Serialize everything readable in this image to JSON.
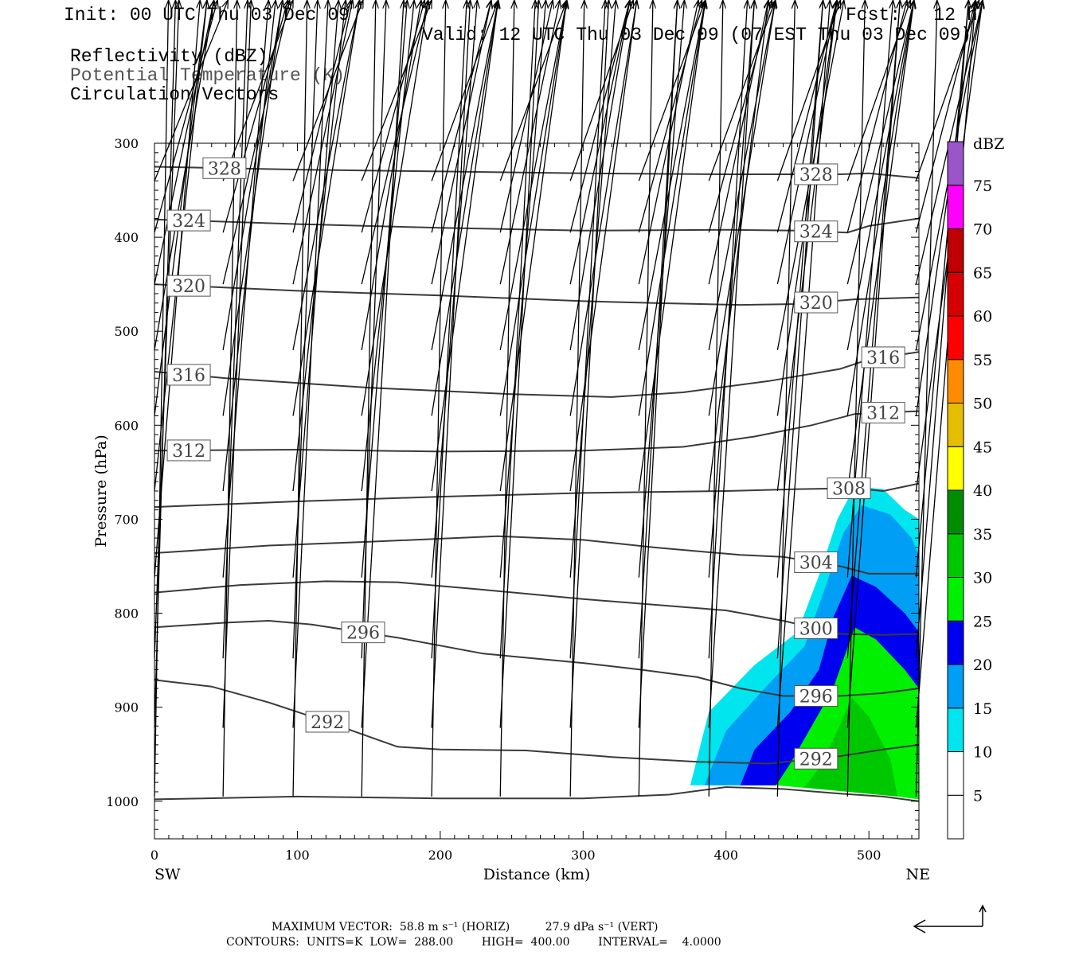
{
  "header": {
    "init": "Init: 00 UTC Thu 03 Dec 09",
    "fcst": "Fcst:   12 h",
    "valid": "Valid: 12 UTC Thu 03 Dec 09 (07 EST Thu 03 Dec 09)",
    "field1": "Reflectivity (dBZ)",
    "field2": "Potential Temperature (K)",
    "field3": "Circulation Vectors"
  },
  "footer": {
    "max_vector": "MAXIMUM VECTOR:  58.8 m s⁻¹ (HORIZ)          27.9 dPa s⁻¹ (VERT)",
    "contours": "CONTOURS:  UNITS=K  LOW=  288.00        HIGH=  400.00        INTERVAL=    4.0000"
  },
  "chart_data": {
    "type": "cross-section",
    "xlabel": "Distance (km)",
    "ylabel": "Pressure (hPa)",
    "x_ends": [
      "SW",
      "NE"
    ],
    "xlim": [
      0,
      535
    ],
    "ylim": [
      1040,
      300
    ],
    "x_ticks": [
      0,
      100,
      200,
      300,
      400,
      500
    ],
    "y_ticks": [
      300,
      400,
      500,
      600,
      700,
      800,
      900,
      1000
    ],
    "colorbar": {
      "unit": "dBZ",
      "levels": [
        5,
        10,
        15,
        20,
        25,
        30,
        35,
        40,
        45,
        50,
        55,
        60,
        65,
        70,
        75
      ],
      "colors": [
        "#ffffff",
        "#00e5ee",
        "#009ff5",
        "#0000f0",
        "#00f000",
        "#00c800",
        "#008c00",
        "#ffff00",
        "#e6be00",
        "#ff8c00",
        "#ff0000",
        "#d70000",
        "#c00000",
        "#ff00ff",
        "#9a55c8"
      ]
    },
    "reflectivity_regions": [
      {
        "min_dbz": 5,
        "points": [
          [
            375,
            983
          ],
          [
            388,
            905
          ],
          [
            420,
            855
          ],
          [
            450,
            820
          ],
          [
            465,
            760
          ],
          [
            478,
            700
          ],
          [
            490,
            665
          ],
          [
            510,
            668
          ],
          [
            525,
            690
          ],
          [
            535,
            700
          ],
          [
            535,
            983
          ]
        ]
      },
      {
        "min_dbz": 10,
        "points": [
          [
            385,
            983
          ],
          [
            400,
            925
          ],
          [
            430,
            875
          ],
          [
            455,
            835
          ],
          [
            470,
            770
          ],
          [
            482,
            715
          ],
          [
            495,
            685
          ],
          [
            515,
            695
          ],
          [
            530,
            720
          ],
          [
            535,
            740
          ],
          [
            535,
            983
          ]
        ]
      },
      {
        "min_dbz": 15,
        "points": [
          [
            410,
            983
          ],
          [
            420,
            945
          ],
          [
            445,
            905
          ],
          [
            465,
            860
          ],
          [
            475,
            805
          ],
          [
            488,
            760
          ],
          [
            505,
            772
          ],
          [
            525,
            800
          ],
          [
            535,
            820
          ],
          [
            535,
            983
          ]
        ]
      },
      {
        "min_dbz": 20,
        "points": [
          [
            435,
            983
          ],
          [
            445,
            960
          ],
          [
            460,
            920
          ],
          [
            475,
            880
          ],
          [
            490,
            815
          ],
          [
            505,
            828
          ],
          [
            525,
            860
          ],
          [
            535,
            880
          ],
          [
            535,
            998
          ],
          [
            520,
            995
          ],
          [
            485,
            990
          ]
        ]
      },
      {
        "min_dbz": 25,
        "points": [
          [
            455,
            985
          ],
          [
            465,
            965
          ],
          [
            478,
            925
          ],
          [
            488,
            890
          ],
          [
            500,
            910
          ],
          [
            515,
            955
          ],
          [
            520,
            995
          ],
          [
            485,
            990
          ]
        ]
      }
    ],
    "theta_contours": [
      {
        "value": 328,
        "points": [
          [
            0,
            325
          ],
          [
            100,
            328
          ],
          [
            200,
            330
          ],
          [
            300,
            332
          ],
          [
            400,
            333
          ],
          [
            480,
            333
          ],
          [
            500,
            332
          ],
          [
            535,
            337
          ]
        ],
        "label_x": [
          49,
          463
        ]
      },
      {
        "value": 324,
        "points": [
          [
            0,
            381
          ],
          [
            100,
            386
          ],
          [
            200,
            390
          ],
          [
            300,
            393
          ],
          [
            400,
            392
          ],
          [
            450,
            393
          ],
          [
            485,
            395
          ],
          [
            500,
            388
          ],
          [
            535,
            380
          ]
        ],
        "label_x": [
          24,
          463
        ]
      },
      {
        "value": 320,
        "points": [
          [
            0,
            450
          ],
          [
            100,
            457
          ],
          [
            200,
            462
          ],
          [
            300,
            468
          ],
          [
            350,
            470
          ],
          [
            410,
            472
          ],
          [
            450,
            471
          ],
          [
            490,
            466
          ],
          [
            535,
            464
          ]
        ],
        "label_x": [
          24,
          463
        ]
      },
      {
        "value": 316,
        "points": [
          [
            0,
            543
          ],
          [
            50,
            550
          ],
          [
            150,
            560
          ],
          [
            250,
            567
          ],
          [
            320,
            570
          ],
          [
            370,
            565
          ],
          [
            430,
            553
          ],
          [
            480,
            540
          ],
          [
            500,
            530
          ],
          [
            535,
            522
          ]
        ],
        "label_x": [
          24,
          510
        ]
      },
      {
        "value": 312,
        "points": [
          [
            0,
            627
          ],
          [
            100,
            626
          ],
          [
            200,
            628
          ],
          [
            300,
            627
          ],
          [
            370,
            623
          ],
          [
            420,
            612
          ],
          [
            460,
            600
          ],
          [
            490,
            588
          ],
          [
            535,
            585
          ]
        ],
        "label_x": [
          24,
          510
        ]
      },
      {
        "value": 308,
        "points": [
          [
            0,
            687
          ],
          [
            100,
            681
          ],
          [
            200,
            676
          ],
          [
            300,
            672
          ],
          [
            400,
            670
          ],
          [
            450,
            668
          ],
          [
            490,
            667
          ],
          [
            510,
            670
          ],
          [
            535,
            662
          ]
        ],
        "label_x": [
          486
        ]
      },
      {
        "value": 304,
        "points": [
          [
            0,
            736
          ],
          [
            80,
            728
          ],
          [
            150,
            724
          ],
          [
            240,
            718
          ],
          [
            300,
            722
          ],
          [
            350,
            730
          ],
          [
            410,
            738
          ],
          [
            440,
            740
          ],
          [
            480,
            750
          ],
          [
            500,
            758
          ],
          [
            535,
            758
          ]
        ],
        "label_x": [
          463
        ]
      },
      {
        "value": 300,
        "points": [
          [
            0,
            778
          ],
          [
            60,
            770
          ],
          [
            120,
            766
          ],
          [
            170,
            767
          ],
          [
            230,
            775
          ],
          [
            300,
            785
          ],
          [
            400,
            797
          ],
          [
            440,
            808
          ],
          [
            480,
            822
          ],
          [
            510,
            823
          ],
          [
            535,
            822
          ]
        ],
        "label_x": [
          463
        ]
      },
      {
        "value": 296,
        "points": [
          [
            0,
            815
          ],
          [
            50,
            810
          ],
          [
            80,
            808
          ],
          [
            110,
            812
          ],
          [
            170,
            826
          ],
          [
            230,
            843
          ],
          [
            300,
            853
          ],
          [
            340,
            860
          ],
          [
            380,
            868
          ],
          [
            410,
            880
          ],
          [
            440,
            888
          ],
          [
            480,
            888
          ],
          [
            510,
            885
          ],
          [
            535,
            880
          ]
        ],
        "label_x": [
          146,
          463
        ]
      },
      {
        "value": 292,
        "points": [
          [
            0,
            871
          ],
          [
            40,
            878
          ],
          [
            80,
            895
          ],
          [
            120,
            915
          ],
          [
            170,
            942
          ],
          [
            200,
            945
          ],
          [
            260,
            946
          ],
          [
            320,
            953
          ],
          [
            380,
            958
          ],
          [
            430,
            960
          ],
          [
            480,
            952
          ],
          [
            510,
            945
          ],
          [
            535,
            940
          ]
        ],
        "label_x": [
          121,
          463
        ]
      },
      {
        "value": 288,
        "points": [
          [
            0,
            998
          ],
          [
            100,
            995
          ],
          [
            200,
            997
          ],
          [
            300,
            997
          ],
          [
            360,
            993
          ],
          [
            400,
            985
          ],
          [
            440,
            987
          ],
          [
            480,
            992
          ],
          [
            510,
            995
          ],
          [
            535,
            1000
          ]
        ],
        "label_x": []
      }
    ],
    "vector_rows": [
      {
        "p": 340,
        "u": [
          42,
          40,
          40,
          40,
          38,
          38,
          36,
          38,
          38,
          36,
          36,
          36,
          36
        ],
        "w": [
          0,
          -3,
          -2,
          -1,
          -2,
          -3,
          -2,
          -1,
          -2,
          0,
          2,
          2,
          6
        ]
      },
      {
        "p": 395,
        "u": [
          36,
          37,
          33,
          36,
          34,
          30,
          34,
          36,
          36,
          34,
          34,
          34,
          34
        ],
        "w": [
          0,
          -2,
          0,
          -2,
          0,
          0,
          0,
          1,
          2,
          2,
          2,
          4,
          10
        ]
      },
      {
        "p": 450,
        "u": [
          34,
          38,
          34,
          38,
          34,
          34,
          34,
          34,
          34,
          34,
          38,
          38,
          38
        ],
        "w": [
          -4,
          -4,
          -2,
          -3,
          -2,
          0,
          0,
          0,
          2,
          2,
          2,
          4,
          6
        ]
      },
      {
        "p": 520,
        "u": [
          34,
          34,
          38,
          34,
          38,
          38,
          34,
          38,
          38,
          38,
          38,
          38,
          38
        ],
        "w": [
          -4,
          -2,
          -4,
          -2,
          0,
          -2,
          0,
          0,
          2,
          4,
          4,
          4,
          6
        ]
      },
      {
        "p": 590,
        "u": [
          30,
          34,
          38,
          38,
          38,
          38,
          38,
          38,
          38,
          34,
          38,
          34,
          34
        ],
        "w": [
          -2,
          -2,
          -2,
          -2,
          0,
          0,
          0,
          0,
          0,
          2,
          2,
          4,
          6
        ]
      },
      {
        "p": 670,
        "u": [
          30,
          30,
          30,
          30,
          38,
          38,
          38,
          38,
          34,
          34,
          38,
          38,
          34
        ],
        "w": [
          -2,
          0,
          0,
          -2,
          -2,
          -2,
          0,
          0,
          2,
          4,
          4,
          12,
          28
        ]
      },
      {
        "p": 762,
        "u": [
          26,
          26,
          26,
          26,
          26,
          26,
          26,
          26,
          26,
          26,
          26,
          30,
          40
        ],
        "w": [
          0,
          0,
          0,
          0,
          0,
          0,
          0,
          0,
          0,
          0,
          0,
          0,
          24
        ]
      },
      {
        "p": 848,
        "u": [
          14,
          14,
          14,
          14,
          20,
          20,
          20,
          22,
          22,
          26,
          30,
          30,
          30
        ],
        "w": [
          0,
          0,
          0,
          0,
          0,
          0,
          0,
          0,
          2,
          6,
          10,
          18,
          22
        ]
      },
      {
        "p": 922,
        "u": [
          12,
          16,
          20,
          24,
          22,
          22,
          22,
          22,
          26,
          30,
          30,
          34,
          34
        ],
        "w": [
          0,
          4,
          0,
          0,
          0,
          0,
          0,
          0,
          4,
          6,
          10,
          8,
          18
        ]
      },
      {
        "p": 995,
        "u": [
          8,
          8,
          8,
          8,
          8,
          8,
          8,
          8,
          8,
          10,
          10,
          12,
          14
        ],
        "w": [
          0,
          0,
          0,
          0,
          0,
          0,
          0,
          0,
          0,
          0,
          0,
          0,
          0
        ]
      }
    ],
    "vector_x_km": [
      0,
      48,
      97,
      145,
      194,
      242,
      291,
      339,
      388,
      436,
      485,
      533,
      535
    ]
  }
}
